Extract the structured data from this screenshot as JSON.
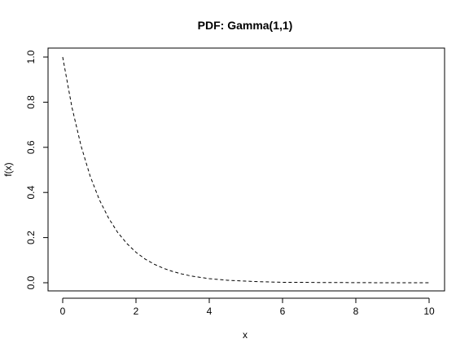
{
  "chart_data": {
    "type": "line",
    "title": "PDF: Gamma(1,1)",
    "xlabel": "x",
    "ylabel": "f(x)",
    "xlim": [
      0,
      10
    ],
    "ylim": [
      0,
      1
    ],
    "xticks": [
      "0",
      "2",
      "4",
      "6",
      "8",
      "10"
    ],
    "yticks": [
      "0.0",
      "0.2",
      "0.4",
      "0.6",
      "0.8",
      "1.0"
    ],
    "grid": false,
    "line_style": "dashed",
    "line_color": "#000000",
    "series": [
      {
        "x": [
          0,
          0.25,
          0.5,
          0.75,
          1,
          1.25,
          1.5,
          1.75,
          2,
          2.25,
          2.5,
          2.75,
          3,
          3.25,
          3.5,
          3.75,
          4,
          4.5,
          5,
          5.5,
          6,
          6.5,
          7,
          7.5,
          8,
          8.5,
          9,
          9.5,
          10
        ],
        "values": [
          1.0,
          0.779,
          0.607,
          0.472,
          0.368,
          0.287,
          0.223,
          0.174,
          0.135,
          0.105,
          0.082,
          0.064,
          0.05,
          0.039,
          0.03,
          0.024,
          0.018,
          0.011,
          0.007,
          0.004,
          0.002,
          0.002,
          0.001,
          0.001,
          0.0003,
          0.0002,
          0.0001,
          0.0001,
          5e-05
        ]
      }
    ]
  }
}
